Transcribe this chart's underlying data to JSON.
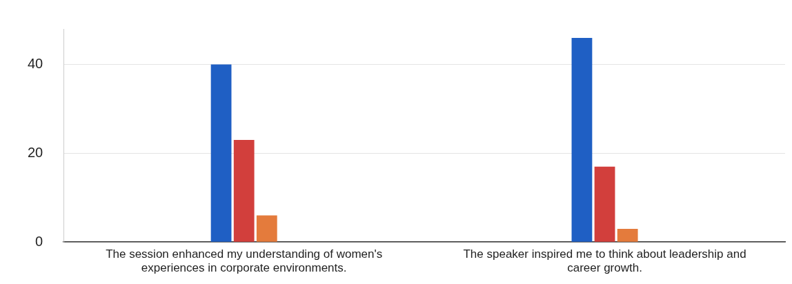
{
  "chart_data": {
    "type": "bar",
    "categories": [
      "The session enhanced my understanding of women's experiences in corporate environments.",
      "The speaker inspired me to think about leadership and career growth."
    ],
    "series": [
      {
        "color": "#1f5fc4",
        "values": [
          40,
          46
        ]
      },
      {
        "color": "#d23f3c",
        "values": [
          23,
          17
        ]
      },
      {
        "color": "#e47b3c",
        "values": [
          6,
          3
        ]
      }
    ],
    "ylim": [
      0,
      48
    ],
    "yticks": [
      0,
      20,
      40
    ],
    "grid": "y",
    "legend": false
  }
}
